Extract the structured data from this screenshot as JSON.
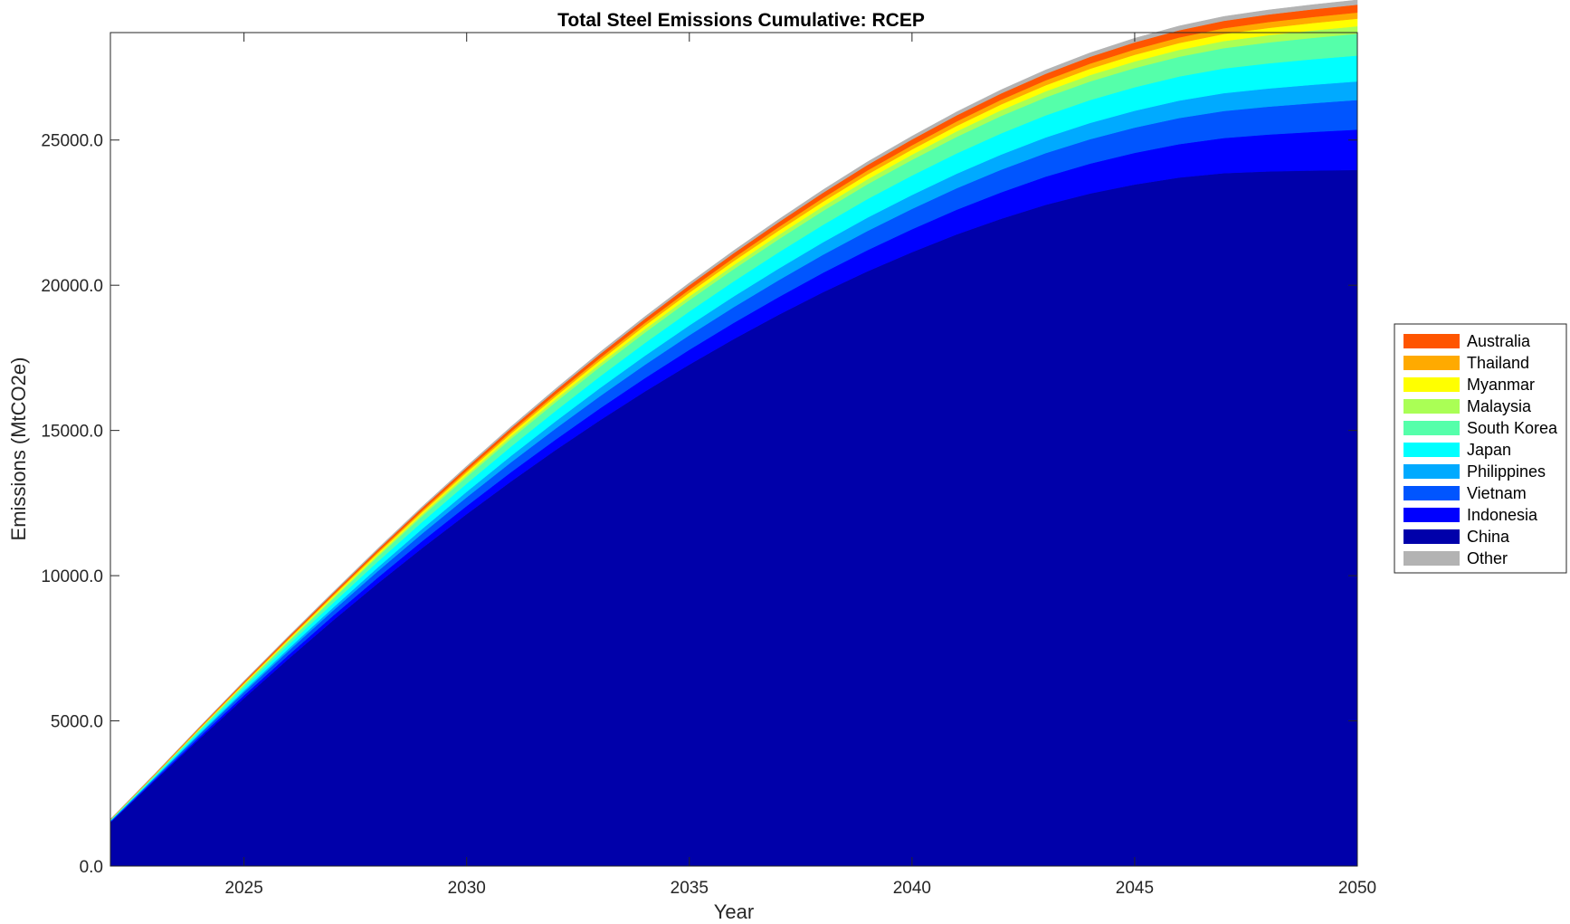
{
  "chart_data": {
    "type": "area",
    "stacked": true,
    "title": "Total Steel Emissions Cumulative: RCEP",
    "xlabel": "Year",
    "ylabel": "Emissions (MtCO2e)",
    "xlim": [
      2022,
      2050
    ],
    "ylim": [
      0,
      28700
    ],
    "x_ticks": [
      2025,
      2030,
      2035,
      2040,
      2045,
      2050
    ],
    "x_tick_labels": [
      "2025",
      "2030",
      "2035",
      "2040",
      "2045",
      "2050"
    ],
    "y_ticks": [
      0,
      5000,
      10000,
      15000,
      20000,
      25000
    ],
    "y_tick_labels": [
      "0.0",
      "5000.0",
      "10000.0",
      "15000.0",
      "20000.0",
      "25000.0"
    ],
    "grid": false,
    "legend_position": "right",
    "x": [
      2022,
      2023,
      2024,
      2025,
      2026,
      2027,
      2028,
      2029,
      2030,
      2031,
      2032,
      2033,
      2034,
      2035,
      2036,
      2037,
      2038,
      2039,
      2040,
      2041,
      2042,
      2043,
      2044,
      2045,
      2046,
      2047,
      2048,
      2049,
      2050
    ],
    "series": [
      {
        "name": "China",
        "color": "#0000AA",
        "values": [
          1500,
          2950,
          4380,
          5780,
          7140,
          8460,
          9730,
          10950,
          12120,
          13250,
          14330,
          15360,
          16340,
          17270,
          18150,
          18980,
          19760,
          20480,
          21140,
          21750,
          22290,
          22770,
          23160,
          23470,
          23710,
          23860,
          23920,
          23950,
          23970
        ]
      },
      {
        "name": "Indonesia",
        "color": "#0000FF",
        "values": [
          20,
          40,
          70,
          100,
          130,
          160,
          200,
          240,
          280,
          320,
          360,
          410,
          460,
          510,
          560,
          610,
          670,
          730,
          790,
          850,
          910,
          970,
          1030,
          1090,
          1150,
          1210,
          1270,
          1330,
          1390
        ]
      },
      {
        "name": "Vietnam",
        "color": "#0055FF",
        "values": [
          25,
          50,
          80,
          110,
          140,
          180,
          220,
          260,
          300,
          340,
          380,
          420,
          460,
          500,
          540,
          580,
          620,
          660,
          700,
          740,
          780,
          810,
          840,
          870,
          900,
          930,
          960,
          990,
          1020
        ]
      },
      {
        "name": "Philippines",
        "color": "#00AAFF",
        "values": [
          10,
          20,
          40,
          60,
          80,
          100,
          130,
          160,
          190,
          220,
          250,
          280,
          310,
          340,
          370,
          400,
          430,
          460,
          480,
          500,
          520,
          540,
          560,
          580,
          600,
          615,
          625,
          635,
          640
        ]
      },
      {
        "name": "Japan",
        "color": "#00FFFF",
        "values": [
          20,
          40,
          70,
          100,
          130,
          160,
          200,
          240,
          280,
          320,
          360,
          400,
          440,
          480,
          520,
          560,
          600,
          640,
          670,
          700,
          730,
          760,
          790,
          810,
          830,
          850,
          865,
          880,
          890
        ]
      },
      {
        "name": "South Korea",
        "color": "#55FFAA",
        "values": [
          15,
          30,
          55,
          80,
          110,
          140,
          170,
          200,
          230,
          270,
          300,
          330,
          360,
          390,
          420,
          450,
          480,
          510,
          540,
          570,
          600,
          620,
          640,
          660,
          680,
          700,
          720,
          735,
          750
        ]
      },
      {
        "name": "Malaysia",
        "color": "#AAFF55",
        "values": [
          5,
          10,
          18,
          28,
          38,
          48,
          58,
          68,
          78,
          88,
          98,
          108,
          118,
          128,
          138,
          148,
          158,
          168,
          178,
          188,
          198,
          208,
          218,
          228,
          236,
          244,
          250,
          255,
          260
        ]
      },
      {
        "name": "Myanmar",
        "color": "#FFFF00",
        "values": [
          5,
          10,
          18,
          28,
          38,
          48,
          58,
          68,
          78,
          88,
          98,
          108,
          118,
          128,
          138,
          148,
          158,
          168,
          178,
          188,
          198,
          208,
          218,
          228,
          236,
          244,
          250,
          255,
          260
        ]
      },
      {
        "name": "Thailand",
        "color": "#FFAA00",
        "values": [
          5,
          10,
          18,
          26,
          34,
          42,
          50,
          58,
          66,
          74,
          82,
          90,
          98,
          106,
          114,
          122,
          130,
          138,
          146,
          154,
          162,
          170,
          178,
          186,
          192,
          198,
          204,
          208,
          212
        ]
      },
      {
        "name": "Australia",
        "color": "#FF5500",
        "values": [
          8,
          16,
          28,
          40,
          52,
          64,
          76,
          88,
          100,
          110,
          120,
          130,
          140,
          150,
          160,
          170,
          180,
          190,
          200,
          210,
          218,
          226,
          234,
          242,
          248,
          254,
          260,
          265,
          270
        ]
      },
      {
        "name": "Other",
        "color": "#B3B3B3",
        "values": [
          5,
          10,
          16,
          22,
          28,
          34,
          40,
          46,
          52,
          58,
          64,
          70,
          76,
          82,
          88,
          94,
          100,
          106,
          112,
          118,
          124,
          130,
          136,
          142,
          146,
          150,
          154,
          158,
          162
        ]
      }
    ],
    "legend_order": [
      "Australia",
      "Thailand",
      "Myanmar",
      "Malaysia",
      "South Korea",
      "Japan",
      "Philippines",
      "Vietnam",
      "Indonesia",
      "China",
      "Other"
    ]
  }
}
